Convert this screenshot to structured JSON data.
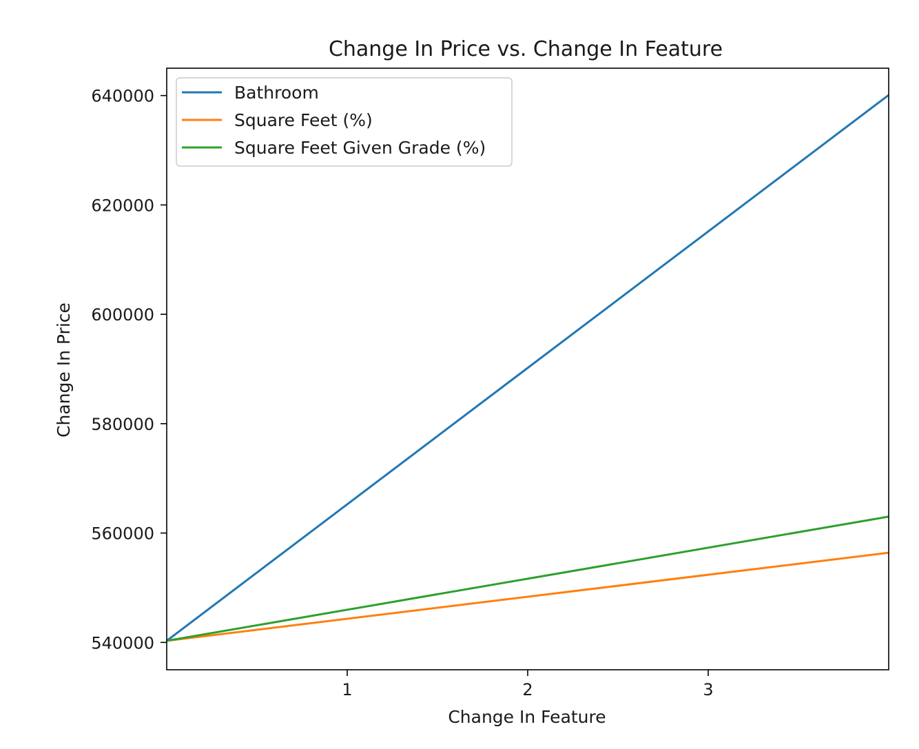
{
  "chart_data": {
    "type": "line",
    "title": "Change In Price vs. Change In Feature",
    "xlabel": "Change In Feature",
    "ylabel": "Change In Price",
    "x": [
      0,
      4
    ],
    "xlim": [
      0,
      4
    ],
    "ylim": [
      535000,
      645000
    ],
    "xticks": [
      1,
      2,
      3
    ],
    "yticks": [
      540000,
      560000,
      580000,
      600000,
      620000,
      640000
    ],
    "grid": false,
    "legend_position": "upper-left",
    "series": [
      {
        "name": "Bathroom",
        "color": "#1f77b4",
        "values": [
          540300,
          640100
        ]
      },
      {
        "name": "Square Feet (%)",
        "color": "#ff7f0e",
        "values": [
          540300,
          556400
        ]
      },
      {
        "name": "Square Feet Given Grade (%)",
        "color": "#2ca02c",
        "values": [
          540300,
          563000
        ]
      }
    ]
  }
}
